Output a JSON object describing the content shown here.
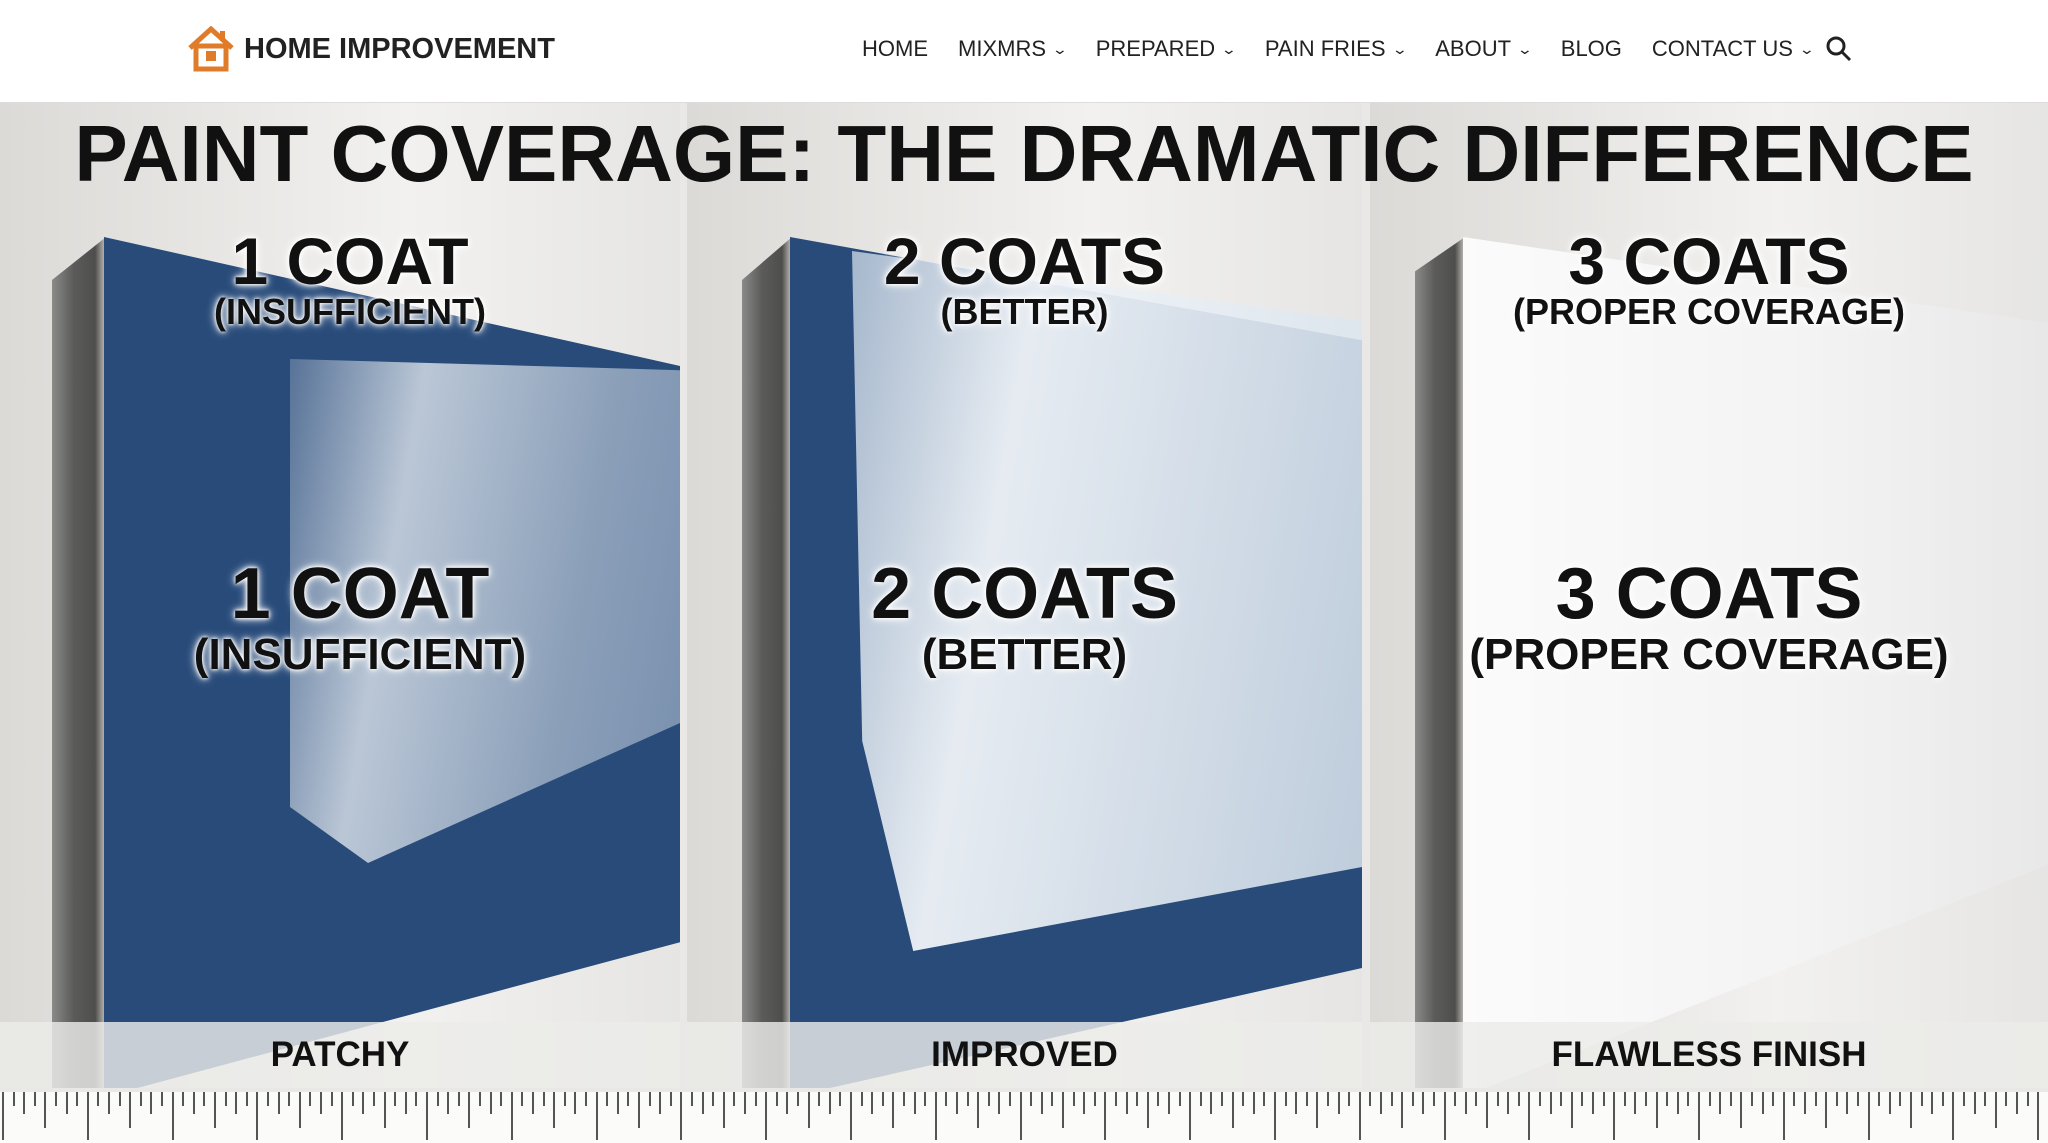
{
  "nav": {
    "brand": "HOME IMPROVEMENT",
    "items": [
      {
        "label": "HOME",
        "dropdown": false
      },
      {
        "label": "MIXMRS",
        "dropdown": true
      },
      {
        "label": "PREPARED",
        "dropdown": true
      },
      {
        "label": "PAIN FRIES",
        "dropdown": true
      },
      {
        "label": "ABOUT",
        "dropdown": true
      },
      {
        "label": "BLOG",
        "dropdown": false
      },
      {
        "label": "CONTACT US",
        "dropdown": true
      }
    ],
    "search_icon": "search-icon",
    "brand_color": "#e07b2a"
  },
  "title": "PAINT COVERAGE: THE DRAMATIC DIFFERENCE",
  "panels": [
    {
      "top_label": "1 COAT",
      "top_sub": "(INSUFFICIENT)",
      "mid_label": "1 COAT",
      "mid_sub": "(INSUFFICIENT)",
      "caption": "PATCHY"
    },
    {
      "top_label": "2 COATS",
      "top_sub": "(BETTER)",
      "mid_label": "2 COATS",
      "mid_sub": "(BETTER)",
      "caption": "IMPROVED"
    },
    {
      "top_label": "3 COATS",
      "top_sub": "(PROPER COVERAGE)",
      "mid_label": "3 COATS",
      "mid_sub": "(PROPER COVERAGE)",
      "caption": "FLAWLESS FINISH"
    }
  ],
  "colors": {
    "paint_blue": "#284b7a",
    "white_paint": "#f4f5f6"
  }
}
